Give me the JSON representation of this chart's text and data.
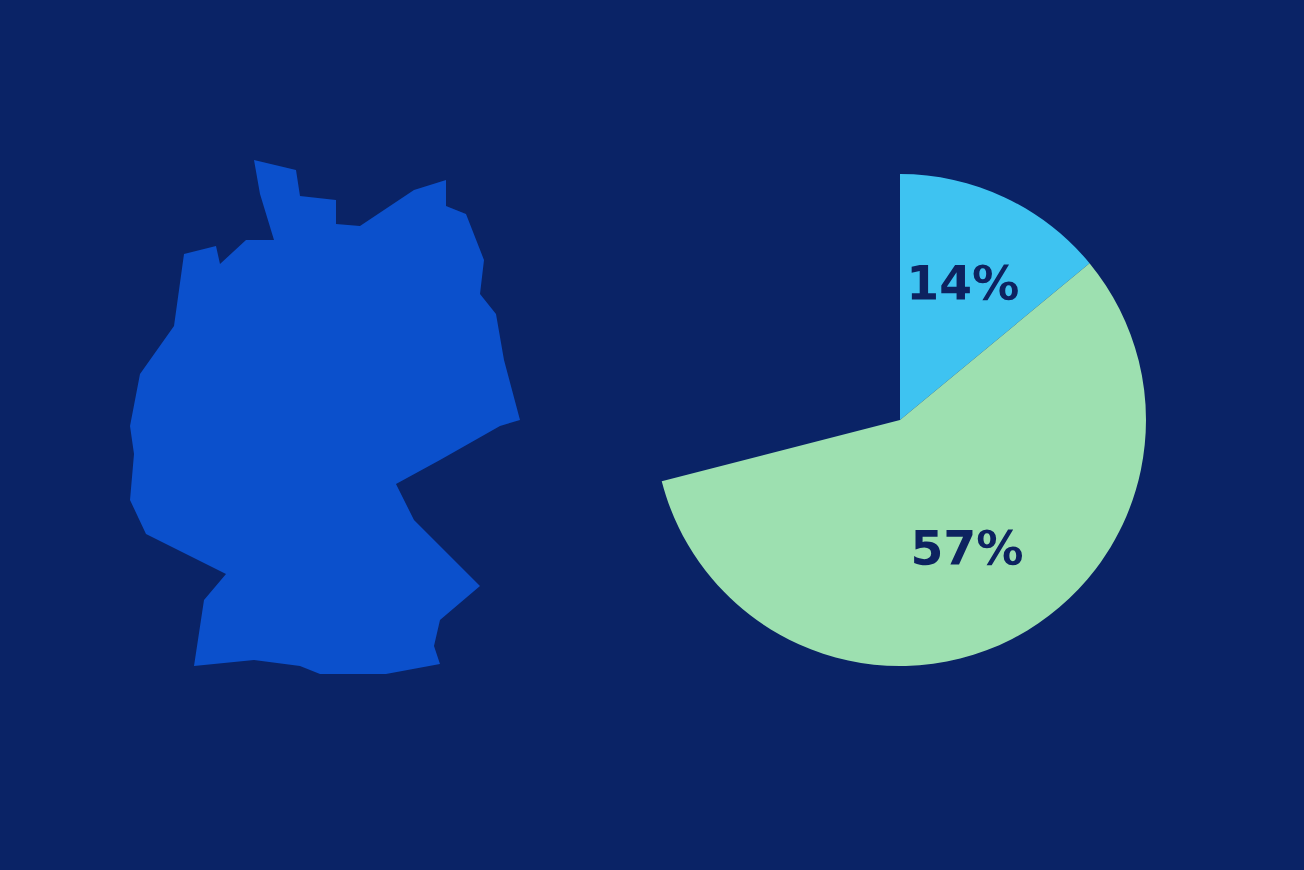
{
  "chart_data": {
    "type": "pie",
    "categories": [
      null,
      null
    ],
    "values": [
      14,
      57
    ],
    "colors": [
      "#3ec3f1",
      "#9de0b0"
    ],
    "value_labels": [
      "14%",
      "57%"
    ]
  }
}
